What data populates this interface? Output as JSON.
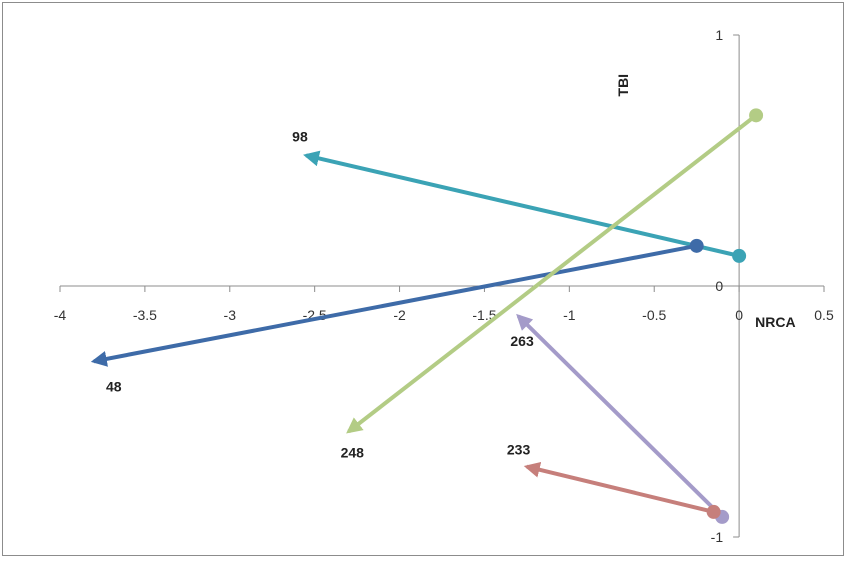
{
  "chart_data": {
    "type": "scatter",
    "title": "",
    "xlabel": "NRCA",
    "ylabel": "TBI",
    "xlim": [
      -4,
      0.5
    ],
    "ylim": [
      -1,
      1
    ],
    "x_ticks": [
      -4,
      -3.5,
      -3,
      -2.5,
      -2,
      -1.5,
      -1,
      -0.5,
      0,
      0.5
    ],
    "x_tick_labels": [
      "-4",
      "-3.5",
      "-3",
      "-2.5",
      "-2",
      "-1.5",
      "-1",
      "-0.5",
      "0",
      "0.5"
    ],
    "y_ticks": [
      -1,
      0,
      1
    ],
    "y_tick_labels": [
      "-1",
      "0",
      "1"
    ],
    "grid": false,
    "legend": "none",
    "series": [
      {
        "label": "98",
        "color": "#3BA3B5",
        "start": [
          0,
          0.12
        ],
        "end": [
          -2.55,
          0.52
        ]
      },
      {
        "label": "48",
        "color": "#3E6BA8",
        "start": [
          -0.25,
          0.16
        ],
        "end": [
          -3.8,
          -0.3
        ]
      },
      {
        "label": "248",
        "color": "#B3CC85",
        "start": [
          0.1,
          0.68
        ],
        "end": [
          -2.3,
          -0.58
        ]
      },
      {
        "label": "263",
        "color": "#A49BC9",
        "start": [
          -0.1,
          -0.92
        ],
        "end": [
          -1.3,
          -0.12
        ]
      },
      {
        "label": "233",
        "color": "#C67F7B",
        "start": [
          -0.15,
          -0.9
        ],
        "end": [
          -1.25,
          -0.72
        ]
      }
    ]
  }
}
